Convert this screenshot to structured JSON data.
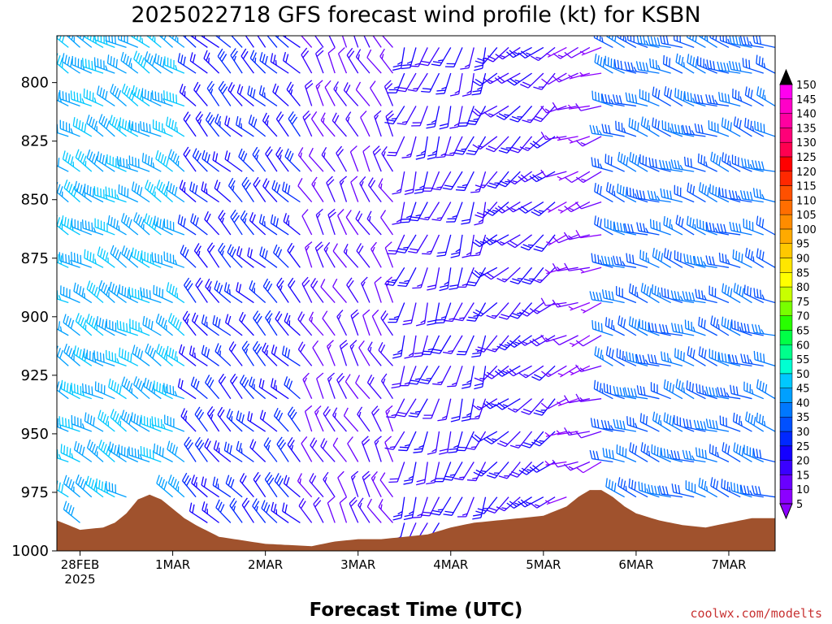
{
  "chart_data": {
    "type": "wind-barb-timeseries",
    "title": "2025022718 GFS forecast wind profile (kt) for KSBN",
    "xlabel": "Forecast Time (UTC)",
    "credit": "coolwx.com/modelts",
    "y_axis": {
      "quantity": "pressure (hPa)",
      "reversed": true,
      "range": [
        1000,
        780
      ],
      "ticks": [
        800,
        825,
        850,
        875,
        900,
        925,
        950,
        975,
        1000
      ]
    },
    "x_axis": {
      "range": [
        "2025-02-27T18",
        "2025-03-07T12"
      ],
      "ticks": [
        {
          "label": "28FEB",
          "sub": "2025",
          "date": "2025-02-28T00"
        },
        {
          "label": "1MAR",
          "sub": "",
          "date": "2025-03-01T00"
        },
        {
          "label": "2MAR",
          "sub": "",
          "date": "2025-03-02T00"
        },
        {
          "label": "3MAR",
          "sub": "",
          "date": "2025-03-03T00"
        },
        {
          "label": "4MAR",
          "sub": "",
          "date": "2025-03-04T00"
        },
        {
          "label": "5MAR",
          "sub": "",
          "date": "2025-03-05T00"
        },
        {
          "label": "6MAR",
          "sub": "",
          "date": "2025-03-06T00"
        },
        {
          "label": "7MAR",
          "sub": "",
          "date": "2025-03-07T00"
        }
      ]
    },
    "levels": [
      785,
      796,
      810,
      823,
      838,
      851,
      865,
      879,
      894,
      908,
      921,
      935,
      949,
      962,
      977,
      988
    ],
    "times": [
      "2025-02-27T18",
      "2025-03-07T12"
    ],
    "time_step_hours": 3,
    "surface_pressure": [
      [
        "2025-02-27T18",
        987
      ],
      [
        "2025-02-28T00",
        991
      ],
      [
        "2025-02-28T06",
        990
      ],
      [
        "2025-02-28T09",
        988
      ],
      [
        "2025-02-28T12",
        984
      ],
      [
        "2025-02-28T15",
        978
      ],
      [
        "2025-02-28T18",
        976
      ],
      [
        "2025-02-28T21",
        978
      ],
      [
        "2025-03-01T00",
        982
      ],
      [
        "2025-03-01T03",
        986
      ],
      [
        "2025-03-01T06",
        989
      ],
      [
        "2025-03-01T12",
        994
      ],
      [
        "2025-03-02T00",
        997
      ],
      [
        "2025-03-02T12",
        998
      ],
      [
        "2025-03-02T18",
        996
      ],
      [
        "2025-03-03T00",
        995
      ],
      [
        "2025-03-03T06",
        995
      ],
      [
        "2025-03-03T12",
        994
      ],
      [
        "2025-03-03T18",
        993
      ],
      [
        "2025-03-04T00",
        990
      ],
      [
        "2025-03-04T06",
        988
      ],
      [
        "2025-03-04T12",
        987
      ],
      [
        "2025-03-04T18",
        986
      ],
      [
        "2025-03-05T00",
        985
      ],
      [
        "2025-03-05T06",
        981
      ],
      [
        "2025-03-05T09",
        977
      ],
      [
        "2025-03-05T12",
        974
      ],
      [
        "2025-03-05T15",
        974
      ],
      [
        "2025-03-05T18",
        977
      ],
      [
        "2025-03-05T21",
        981
      ],
      [
        "2025-03-06T00",
        984
      ],
      [
        "2025-03-06T06",
        987
      ],
      [
        "2025-03-06T12",
        989
      ],
      [
        "2025-03-06T18",
        990
      ],
      [
        "2025-03-07T00",
        988
      ],
      [
        "2025-03-07T06",
        986
      ],
      [
        "2025-03-07T12",
        986
      ]
    ],
    "wind_regimes": [
      {
        "from": "2025-02-27T18",
        "to": "2025-03-01T06",
        "direction_deg": 300,
        "speed_kt": [
          40,
          48
        ],
        "note": "strong NW flow"
      },
      {
        "from": "2025-03-01T06",
        "to": "2025-03-02T12",
        "direction_deg": 315,
        "speed_kt": [
          20,
          30
        ]
      },
      {
        "from": "2025-03-02T12",
        "to": "2025-03-03T12",
        "direction_deg": 330,
        "speed_kt": [
          10,
          20
        ]
      },
      {
        "from": "2025-03-03T12",
        "to": "2025-03-04T12",
        "direction_deg": 200,
        "speed_kt": [
          15,
          25
        ]
      },
      {
        "from": "2025-03-04T12",
        "to": "2025-03-05T06",
        "direction_deg": 230,
        "speed_kt": [
          15,
          25
        ]
      },
      {
        "from": "2025-03-05T06",
        "to": "2025-03-05T18",
        "direction_deg": 250,
        "speed_kt": [
          5,
          15
        ]
      },
      {
        "from": "2025-03-05T18",
        "to": "2025-03-07T12",
        "direction_deg": 290,
        "speed_kt": [
          30,
          40
        ]
      }
    ],
    "colorbar": {
      "labels": [
        5,
        10,
        15,
        20,
        25,
        30,
        35,
        40,
        45,
        50,
        55,
        60,
        65,
        70,
        75,
        80,
        85,
        90,
        95,
        100,
        105,
        110,
        115,
        120,
        125,
        130,
        135,
        140,
        145,
        150
      ],
      "colors": [
        "#8c00ff",
        "#6a00ff",
        "#3a00ff",
        "#1400ff",
        "#0028ff",
        "#0050ff",
        "#0078ff",
        "#00a0ff",
        "#00c8ff",
        "#00ffd2",
        "#00ff8c",
        "#00ff46",
        "#28ff00",
        "#78ff00",
        "#c8ff00",
        "#ffff00",
        "#ffe600",
        "#ffc800",
        "#ffaa00",
        "#ff8c00",
        "#ff6e00",
        "#ff5000",
        "#ff2800",
        "#ff0000",
        "#ff0050",
        "#ff0078",
        "#ff00a0",
        "#ff00c8",
        "#ff00f0"
      ]
    },
    "terrain_color": "#a0522d"
  }
}
